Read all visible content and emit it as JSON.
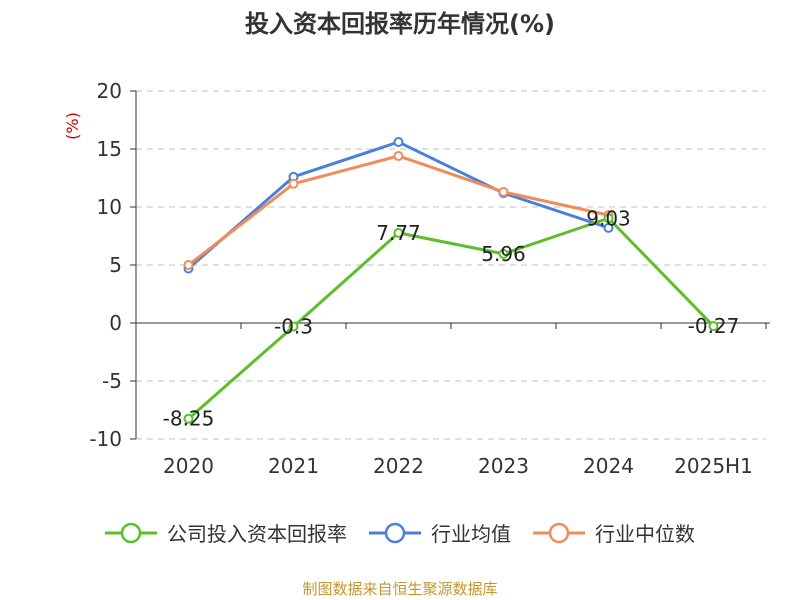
{
  "page": {
    "title": "投入资本回报率历年情况(%)",
    "source": "制图数据来自恒生聚源数据库"
  },
  "colors": {
    "company": "#5cbf2a",
    "industry_avg": "#4a7fdc",
    "industry_median": "#f08c5a",
    "unit": "#cc0000",
    "axis": "#333333",
    "grid": "#cccccc",
    "text": "#333333"
  },
  "chart_data": {
    "type": "line",
    "title": "投入资本回报率历年情况(%)",
    "ylabel": "(%)",
    "xlabel": "",
    "categories": [
      "2020",
      "2021",
      "2022",
      "2023",
      "2024",
      "2025H1"
    ],
    "ylim": [
      -10,
      20
    ],
    "yticks": [
      20,
      15,
      10,
      5,
      0,
      -5,
      -10
    ],
    "grid": true,
    "legend_position": "bottom",
    "series": [
      {
        "name": "公司投入资本回报率",
        "color": "#5cbf2a",
        "values": [
          -8.25,
          -0.3,
          7.77,
          5.96,
          9.03,
          -0.27
        ],
        "labels": [
          "-8.25",
          "-0.3",
          "7.77",
          "5.96",
          "9.03",
          "-0.27"
        ]
      },
      {
        "name": "行业均值",
        "color": "#4a7fdc",
        "values": [
          4.7,
          12.6,
          15.6,
          11.2,
          8.2,
          null
        ]
      },
      {
        "name": "行业中位数",
        "color": "#f08c5a",
        "values": [
          5.0,
          12.0,
          14.4,
          11.3,
          9.3,
          null
        ]
      }
    ]
  }
}
